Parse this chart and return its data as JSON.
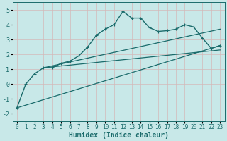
{
  "xlabel": "Humidex (Indice chaleur)",
  "background_color": "#c8e8e8",
  "grid_color": "#e0e0e0",
  "line_color": "#1a6b6b",
  "xlim": [
    -0.5,
    23.5
  ],
  "ylim": [
    -2.5,
    5.5
  ],
  "yticks": [
    -2,
    -1,
    0,
    1,
    2,
    3,
    4,
    5
  ],
  "xticks": [
    0,
    1,
    2,
    3,
    4,
    5,
    6,
    7,
    8,
    9,
    10,
    11,
    12,
    13,
    14,
    15,
    16,
    17,
    18,
    19,
    20,
    21,
    22,
    23
  ],
  "series": [
    {
      "x": [
        0,
        1,
        2,
        3,
        4,
        5,
        6,
        7,
        8,
        9,
        10,
        11,
        12,
        13,
        14,
        15,
        16,
        17,
        18,
        19,
        20,
        21,
        22,
        23
      ],
      "y": [
        -1.6,
        0.0,
        0.7,
        1.1,
        1.1,
        1.4,
        1.55,
        1.9,
        2.5,
        3.3,
        3.7,
        4.0,
        4.9,
        4.45,
        4.45,
        3.8,
        3.55,
        3.6,
        3.7,
        4.0,
        3.85,
        3.1,
        2.4,
        2.6
      ],
      "marker": "+",
      "markersize": 3,
      "linewidth": 1.0,
      "zorder": 3
    },
    {
      "x": [
        0,
        23
      ],
      "y": [
        -1.6,
        2.6
      ],
      "marker": null,
      "linewidth": 0.9,
      "zorder": 2
    },
    {
      "x": [
        3,
        23
      ],
      "y": [
        1.1,
        2.3
      ],
      "marker": null,
      "linewidth": 0.9,
      "zorder": 2
    },
    {
      "x": [
        3,
        23
      ],
      "y": [
        1.1,
        3.7
      ],
      "marker": null,
      "linewidth": 0.9,
      "zorder": 2
    }
  ]
}
